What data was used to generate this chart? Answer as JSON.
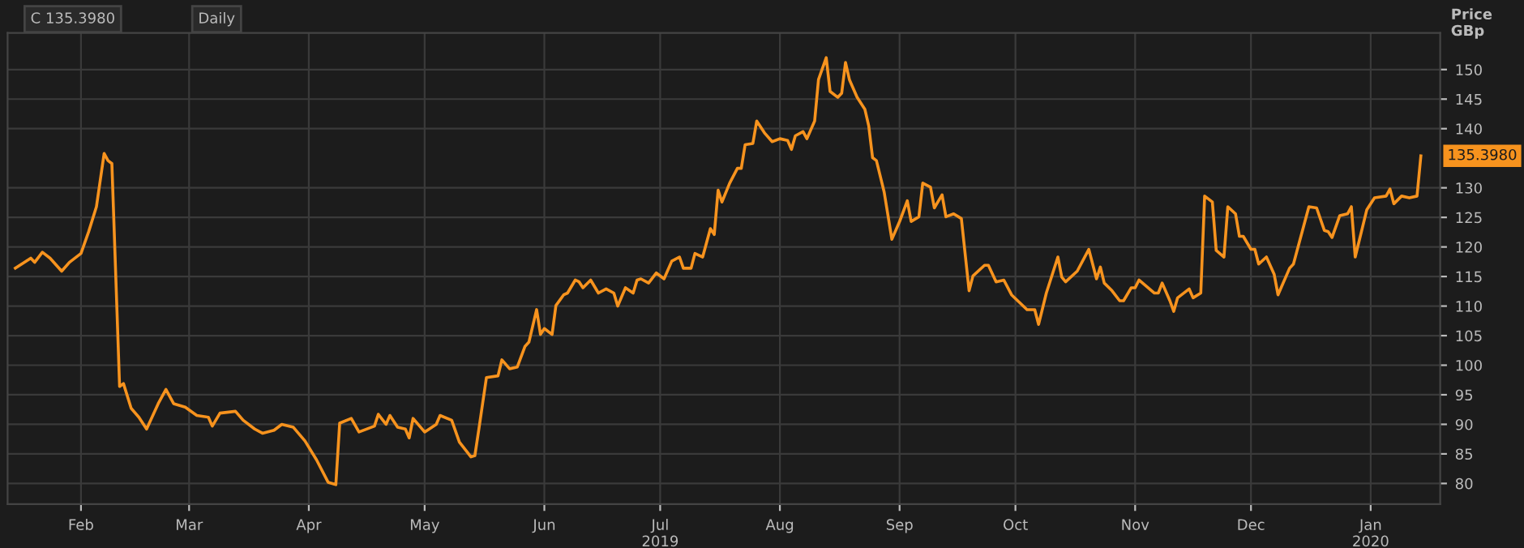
{
  "chart_data": {
    "type": "line",
    "ylabel": "Price\nGBp",
    "annotations": [
      "C 135.3980",
      "Daily",
      {
        "text": "135.3980",
        "x": "2020-01-14",
        "y": 135.398
      }
    ],
    "series": [
      {
        "color": "#f7931e",
        "x": [
          "2019-01-15",
          "2019-01-19",
          "2019-01-20",
          "2019-01-22",
          "2019-01-24",
          "2019-01-27",
          "2019-01-29",
          "2019-02-01",
          "2019-02-03",
          "2019-02-05",
          "2019-02-07",
          "2019-02-08",
          "2019-02-09",
          "2019-02-11",
          "2019-02-12",
          "2019-02-14",
          "2019-02-16",
          "2019-02-18",
          "2019-02-21",
          "2019-02-23",
          "2019-02-25",
          "2019-02-28",
          "2019-03-03",
          "2019-03-06",
          "2019-03-07",
          "2019-03-09",
          "2019-03-13",
          "2019-03-15",
          "2019-03-18",
          "2019-03-20",
          "2019-03-23",
          "2019-03-25",
          "2019-03-28",
          "2019-03-31",
          "2019-04-03",
          "2019-04-06",
          "2019-04-08",
          "2019-04-09",
          "2019-04-12",
          "2019-04-14",
          "2019-04-18",
          "2019-04-19",
          "2019-04-21",
          "2019-04-22",
          "2019-04-24",
          "2019-04-26",
          "2019-04-27",
          "2019-04-28",
          "2019-05-01",
          "2019-05-04",
          "2019-05-05",
          "2019-05-08",
          "2019-05-10",
          "2019-05-13",
          "2019-05-14",
          "2019-05-15",
          "2019-05-17",
          "2019-05-20",
          "2019-05-21",
          "2019-05-23",
          "2019-05-25",
          "2019-05-27",
          "2019-05-28",
          "2019-05-30",
          "2019-05-31",
          "2019-06-01",
          "2019-06-03",
          "2019-06-04",
          "2019-06-06",
          "2019-06-07",
          "2019-06-09",
          "2019-06-10",
          "2019-06-11",
          "2019-06-13",
          "2019-06-15",
          "2019-06-17",
          "2019-06-19",
          "2019-06-20",
          "2019-06-22",
          "2019-06-24",
          "2019-06-25",
          "2019-06-26",
          "2019-06-28",
          "2019-06-30",
          "2019-07-02",
          "2019-07-04",
          "2019-07-06",
          "2019-07-07",
          "2019-07-09",
          "2019-07-10",
          "2019-07-12",
          "2019-07-14",
          "2019-07-15",
          "2019-07-16",
          "2019-07-17",
          "2019-07-19",
          "2019-07-21",
          "2019-07-22",
          "2019-07-23",
          "2019-07-25",
          "2019-07-26",
          "2019-07-28",
          "2019-07-30",
          "2019-08-01",
          "2019-08-03",
          "2019-08-04",
          "2019-08-05",
          "2019-08-07",
          "2019-08-08",
          "2019-08-10",
          "2019-08-11",
          "2019-08-13",
          "2019-08-14",
          "2019-08-16",
          "2019-08-17",
          "2019-08-18",
          "2019-08-19",
          "2019-08-21",
          "2019-08-23",
          "2019-08-24",
          "2019-08-25",
          "2019-08-26",
          "2019-08-28",
          "2019-08-30",
          "2019-09-01",
          "2019-09-03",
          "2019-09-04",
          "2019-09-06",
          "2019-09-07",
          "2019-09-09",
          "2019-09-10",
          "2019-09-12",
          "2019-09-13",
          "2019-09-15",
          "2019-09-17",
          "2019-09-19",
          "2019-09-20",
          "2019-09-23",
          "2019-09-24",
          "2019-09-26",
          "2019-09-28",
          "2019-09-30",
          "2019-10-04",
          "2019-10-06",
          "2019-10-07",
          "2019-10-09",
          "2019-10-12",
          "2019-10-13",
          "2019-10-14",
          "2019-10-17",
          "2019-10-20",
          "2019-10-22",
          "2019-10-23",
          "2019-10-24",
          "2019-10-26",
          "2019-10-28",
          "2019-10-29",
          "2019-10-31",
          "2019-11-01",
          "2019-11-02",
          "2019-11-06",
          "2019-11-07",
          "2019-11-08",
          "2019-11-10",
          "2019-11-11",
          "2019-11-12",
          "2019-11-15",
          "2019-11-16",
          "2019-11-18",
          "2019-11-19",
          "2019-11-21",
          "2019-11-22",
          "2019-11-24",
          "2019-11-25",
          "2019-11-27",
          "2019-11-28",
          "2019-11-29",
          "2019-12-01",
          "2019-12-02",
          "2019-12-03",
          "2019-12-05",
          "2019-12-07",
          "2019-12-08",
          "2019-12-11",
          "2019-12-12",
          "2019-12-16",
          "2019-12-18",
          "2019-12-20",
          "2019-12-21",
          "2019-12-22",
          "2019-12-24",
          "2019-12-26",
          "2019-12-27",
          "2019-12-28",
          "2019-12-31",
          "2020-01-02",
          "2020-01-05",
          "2020-01-06",
          "2020-01-07",
          "2020-01-09",
          "2020-01-11",
          "2020-01-13",
          "2020-01-14"
        ],
        "values": [
          116.4,
          118.1,
          117.4,
          119.1,
          118.1,
          115.9,
          117.4,
          118.9,
          122.6,
          126.8,
          135.8,
          134.6,
          134.1,
          96.4,
          96.9,
          92.7,
          91.2,
          89.2,
          93.5,
          95.9,
          93.5,
          92.9,
          91.5,
          91.2,
          89.7,
          91.9,
          92.2,
          90.7,
          89.2,
          88.5,
          89.0,
          90.0,
          89.5,
          87.2,
          84.0,
          80.2,
          79.8,
          90.2,
          91.0,
          88.7,
          89.7,
          91.7,
          90.0,
          91.5,
          89.5,
          89.2,
          87.7,
          91.0,
          88.7,
          90.0,
          91.5,
          90.7,
          87.0,
          84.5,
          84.7,
          89.0,
          97.9,
          98.2,
          100.9,
          99.4,
          99.7,
          103.2,
          103.9,
          109.4,
          105.2,
          106.2,
          105.2,
          110.1,
          111.9,
          112.2,
          114.4,
          114.1,
          113.1,
          114.4,
          112.2,
          112.9,
          112.2,
          110.0,
          113.1,
          112.2,
          114.4,
          114.6,
          113.9,
          115.6,
          114.6,
          117.6,
          118.3,
          116.4,
          116.4,
          118.9,
          118.3,
          123.1,
          122.1,
          129.6,
          127.6,
          130.8,
          133.3,
          133.3,
          137.3,
          137.5,
          141.3,
          139.3,
          137.8,
          138.3,
          138.0,
          136.5,
          138.8,
          139.5,
          138.3,
          141.3,
          148.3,
          152.0,
          146.3,
          145.3,
          146.0,
          151.2,
          148.3,
          145.3,
          143.3,
          140.5,
          135.1,
          134.6,
          129.3,
          121.3,
          124.3,
          127.8,
          124.3,
          125.1,
          130.8,
          130.1,
          126.6,
          128.8,
          125.1,
          125.6,
          124.8,
          112.6,
          115.1,
          116.9,
          116.9,
          114.1,
          114.4,
          111.9,
          109.4,
          109.4,
          106.9,
          112.2,
          118.3,
          114.9,
          114.1,
          115.9,
          119.6,
          114.6,
          116.6,
          113.9,
          112.6,
          110.9,
          110.9,
          113.1,
          113.1,
          114.4,
          112.2,
          112.2,
          113.9,
          110.9,
          109.1,
          111.4,
          112.9,
          111.4,
          112.2,
          128.6,
          127.6,
          119.4,
          118.3,
          126.8,
          125.6,
          121.8,
          121.8,
          119.6,
          119.6,
          117.1,
          118.3,
          115.4,
          111.9,
          116.4,
          117.1,
          126.8,
          126.6,
          122.8,
          122.6,
          121.6,
          125.3,
          125.6,
          126.8,
          118.3,
          126.3,
          128.3,
          128.6,
          129.8,
          127.3,
          128.6,
          128.3,
          128.6,
          135.398
        ]
      }
    ],
    "xlim": [
      "2019-01-13",
      "2020-01-19"
    ],
    "xticks": [
      {
        "value": "2019-02-01",
        "label": "Feb"
      },
      {
        "value": "2019-03-01",
        "label": "Mar"
      },
      {
        "value": "2019-04-01",
        "label": "Apr"
      },
      {
        "value": "2019-05-01",
        "label": "May"
      },
      {
        "value": "2019-06-01",
        "label": "Jun"
      },
      {
        "value": "2019-07-01",
        "label": "Jul\n2019"
      },
      {
        "value": "2019-08-01",
        "label": "Aug"
      },
      {
        "value": "2019-09-01",
        "label": "Sep"
      },
      {
        "value": "2019-10-01",
        "label": "Oct"
      },
      {
        "value": "2019-11-01",
        "label": "Nov"
      },
      {
        "value": "2019-12-01",
        "label": "Dec"
      },
      {
        "value": "2020-01-01",
        "label": "Jan\n2020"
      }
    ],
    "ylim": [
      76.5,
      156.2
    ],
    "yticks": [
      80,
      85,
      90,
      95,
      100,
      105,
      110,
      115,
      120,
      125,
      130,
      140,
      145,
      150
    ],
    "grid": true
  }
}
